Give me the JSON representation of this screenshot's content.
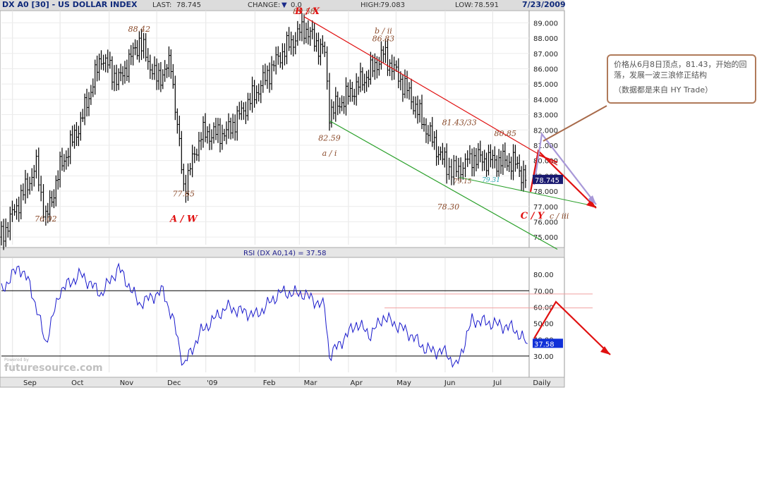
{
  "header": {
    "symbol": "DX A0 [30] - US DOLLAR INDEX",
    "last_label": "LAST:",
    "last_value": "78.745",
    "change_label": "CHANGE:",
    "change_value": "0.0",
    "high_label": "HIGH:",
    "high_value": "79.083",
    "low_label": "LOW:",
    "low_value": "78.591",
    "date": "7/23/2009"
  },
  "note": {
    "line1": "价格从6月8日顶点，81.43，开始的回落，发展一波三浪修正结构",
    "line2": "（数据都是来自 HY Trade）"
  },
  "watermark": "futuresource.com",
  "watermark_small": "Powered by",
  "colors": {
    "price_bars": "#000000",
    "red_channel": "#e01010",
    "green_channel": "#2aa02a",
    "rsi_line": "#1a1acc",
    "label_brown": "#8a4a2a",
    "label_red": "#e01010",
    "purple_arrow": "#a898d8",
    "price_box": "#1a1a70",
    "rsi_box": "#1030d8"
  },
  "chart_data": [
    {
      "type": "ohlc",
      "title": "DX A0 [30] - US DOLLAR INDEX",
      "x_tick_labels": [
        "Sep",
        "Oct",
        "Nov",
        "Dec",
        "'09",
        "Feb",
        "Mar",
        "Apr",
        "May",
        "Jun",
        "Jul",
        "Daily"
      ],
      "y_tick_labels": [
        "89.000",
        "88.000",
        "87.000",
        "86.000",
        "85.000",
        "84.000",
        "83.000",
        "82.000",
        "81.000",
        "80.000",
        "79.000",
        "78.000",
        "77.000",
        "76.000",
        "75.000"
      ],
      "ylim": [
        74.5,
        89.8
      ],
      "last_price_label": "78.745",
      "series": [
        {
          "x": [
            "2008-08-25",
            "2008-09-05",
            "2008-09-16",
            "2008-09-22",
            "2008-10-01",
            "2008-10-14",
            "2008-10-27",
            "2008-11-07",
            "2008-11-20",
            "2008-12-01",
            "2008-12-10",
            "2008-12-18",
            "2008-12-29",
            "2009-01-14",
            "2009-02-02",
            "2009-02-17",
            "2009-03-04",
            "2009-03-17",
            "2009-03-20",
            "2009-04-06",
            "2009-04-15",
            "2009-04-23",
            "2009-05-08",
            "2009-05-20",
            "2009-06-02",
            "2009-06-08",
            "2009-06-18",
            "2009-07-01",
            "2009-07-14",
            "2009-07-23"
          ],
          "close": [
            75.0,
            77.3,
            79.6,
            76.1,
            79.5,
            82.5,
            86.8,
            85.2,
            87.8,
            85.3,
            86.3,
            78.2,
            81.7,
            81.8,
            84.5,
            86.9,
            88.7,
            87.0,
            83.1,
            84.8,
            85.8,
            87.0,
            84.6,
            82.1,
            79.6,
            79.3,
            80.2,
            80.0,
            79.9,
            78.745
          ]
        }
      ],
      "annotations": [
        {
          "text": "88.42",
          "x": "2008-11-20",
          "y": 88.42
        },
        {
          "text": "76.02",
          "x": "2008-09-22",
          "y": 76.02
        },
        {
          "text": "77.65",
          "x": "2008-12-18",
          "y": 77.65
        },
        {
          "text": "A / W",
          "x": "2008-12-18",
          "y": 76.0
        },
        {
          "text": "89.58",
          "x": "2009-03-04",
          "y": 89.58
        },
        {
          "text": "B / X",
          "x": "2009-03-06",
          "y": 89.58
        },
        {
          "text": "b / ii",
          "x": "2009-04-23",
          "y": 88.3
        },
        {
          "text": "86.83",
          "x": "2009-04-23",
          "y": 87.8
        },
        {
          "text": "82.59",
          "x": "2009-03-20",
          "y": 81.3
        },
        {
          "text": "a / i",
          "x": "2009-03-20",
          "y": 80.3
        },
        {
          "text": "81.43/33",
          "x": "2009-06-10",
          "y": 82.3
        },
        {
          "text": "80.85",
          "x": "2009-07-09",
          "y": 81.6
        },
        {
          "text": "79.15",
          "x": "2009-06-12",
          "y": 78.5
        },
        {
          "text": "79.31",
          "x": "2009-06-30",
          "y": 78.6
        },
        {
          "text": "78.30",
          "x": "2009-06-03",
          "y": 76.8
        },
        {
          "text": "C / Y",
          "x": "2009-07-26",
          "y": 76.2
        },
        {
          "text": "c / iii",
          "x": "2009-08-12",
          "y": 76.2
        }
      ]
    },
    {
      "type": "line",
      "title": "RSI (DX A0,14) = 37.58",
      "y_tick_labels": [
        "80.00",
        "70.00",
        "60.00",
        "50.00",
        "40.00",
        "30.00"
      ],
      "ylim": [
        20,
        90
      ],
      "reference_lines": [
        70,
        30
      ],
      "last_value_label": "37.58",
      "series": [
        {
          "name": "RSI (DX A0,14)",
          "x": [
            "2008-08-25",
            "2008-09-05",
            "2008-09-12",
            "2008-09-22",
            "2008-10-01",
            "2008-10-14",
            "2008-10-27",
            "2008-11-07",
            "2008-11-20",
            "2008-12-05",
            "2008-12-12",
            "2008-12-18",
            "2008-12-29",
            "2009-01-14",
            "2009-02-02",
            "2009-02-17",
            "2009-03-04",
            "2009-03-17",
            "2009-03-20",
            "2009-04-06",
            "2009-04-15",
            "2009-04-23",
            "2009-05-08",
            "2009-05-20",
            "2009-06-02",
            "2009-06-08",
            "2009-06-18",
            "2009-07-01",
            "2009-07-14",
            "2009-07-23"
          ],
          "values": [
            70,
            85,
            74,
            38,
            70,
            80,
            68,
            84,
            62,
            70,
            50,
            24,
            45,
            60,
            55,
            69,
            68,
            60,
            30,
            50,
            43,
            54,
            45,
            34,
            32,
            23,
            52,
            50,
            47,
            37.58
          ]
        }
      ]
    }
  ]
}
